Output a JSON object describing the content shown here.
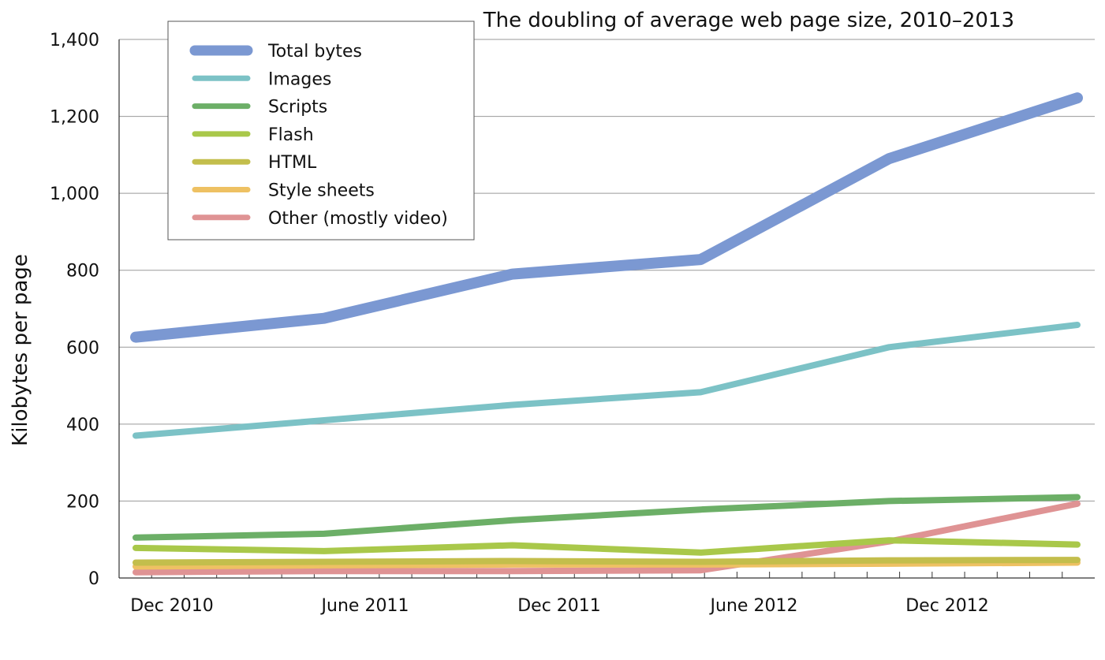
{
  "chart_data": {
    "type": "line",
    "title": "The doubling of average web page size, 2010–2013",
    "ylabel": "Kilobytes per page",
    "xlabel": "",
    "x": [
      "Nov 2010",
      "May 2011",
      "Nov 2011",
      "May 2012",
      "Nov 2012",
      "May 2013"
    ],
    "x_tick_labels": [
      "Dec 2010",
      "June 2011",
      "Dec 2011",
      "June 2012",
      "Dec 2012"
    ],
    "ylim": [
      0,
      1400
    ],
    "y_ticks": [
      0,
      200,
      400,
      600,
      800,
      1000,
      1200,
      1400
    ],
    "y_tick_labels": [
      "0",
      "200",
      "400",
      "600",
      "800",
      "1,000",
      "1,200",
      "1,400"
    ],
    "grid": "horizontal",
    "legend_position": "top-left",
    "series": [
      {
        "name": "Total bytes",
        "color": "#7b98d2",
        "values": [
          626,
          675,
          790,
          828,
          1090,
          1248
        ]
      },
      {
        "name": "Images",
        "color": "#7cc2c6",
        "values": [
          370,
          410,
          450,
          483,
          600,
          658
        ]
      },
      {
        "name": "Scripts",
        "color": "#6caf67",
        "values": [
          105,
          115,
          150,
          178,
          200,
          210
        ]
      },
      {
        "name": "Flash",
        "color": "#a9c84a",
        "values": [
          78,
          70,
          85,
          66,
          98,
          87
        ]
      },
      {
        "name": "HTML",
        "color": "#c3be4c",
        "values": [
          40,
          42,
          44,
          42,
          46,
          47
        ]
      },
      {
        "name": "Style sheets",
        "color": "#eec163",
        "values": [
          30,
          33,
          35,
          35,
          37,
          40
        ]
      },
      {
        "name": "Other (mostly video)",
        "color": "#df9394",
        "values": [
          15,
          18,
          18,
          20,
          95,
          193
        ]
      }
    ]
  }
}
